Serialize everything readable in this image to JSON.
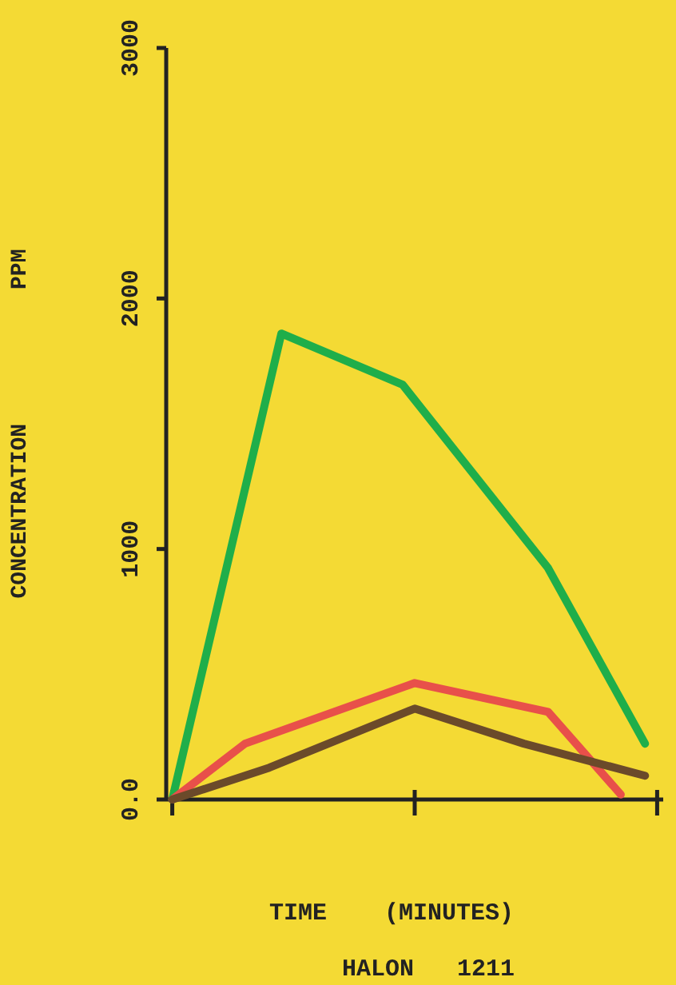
{
  "chart_data": {
    "type": "line",
    "xlabel": "TIME    (MINUTES)",
    "ylabel": "CONCENTRATION          PPM",
    "annotations": [
      "HALON   1211"
    ],
    "categories": [
      null,
      null,
      null,
      null,
      null,
      null,
      null,
      null,
      null,
      null,
      null,
      null,
      null,
      null,
      null,
      null,
      null,
      null,
      null,
      null,
      null,
      null,
      null,
      null,
      null,
      null,
      null,
      null,
      null,
      null,
      null,
      null,
      null,
      null,
      null,
      null,
      null,
      null,
      null,
      null,
      null
    ],
    "ylim": [
      0,
      3000
    ],
    "yticks": [
      {
        "value": 0,
        "label": "0.0"
      },
      1000,
      2000,
      3000
    ],
    "marker": "none",
    "line_style": "solid",
    "series": [
      {
        "color": "#1fae4a",
        "values": [
          0,
          null,
          null,
          null,
          null,
          null,
          null,
          null,
          null,
          1860,
          null,
          null,
          null,
          null,
          null,
          null,
          null,
          null,
          null,
          1656,
          null,
          null,
          null,
          null,
          null,
          null,
          null,
          null,
          null,
          null,
          null,
          924,
          null,
          null,
          null,
          null,
          null,
          null,
          null,
          223,
          null
        ]
      },
      {
        "color": "#e8504a",
        "values": [
          0,
          null,
          null,
          null,
          null,
          null,
          223,
          null,
          null,
          null,
          null,
          null,
          null,
          null,
          null,
          null,
          null,
          null,
          null,
          null,
          465,
          null,
          null,
          null,
          null,
          null,
          null,
          null,
          null,
          null,
          null,
          350,
          null,
          null,
          null,
          null,
          null,
          20,
          null,
          null,
          null
        ]
      },
      {
        "color": "#6b4a2a",
        "values": [
          0,
          null,
          null,
          null,
          null,
          null,
          null,
          null,
          127,
          null,
          null,
          null,
          null,
          null,
          null,
          null,
          null,
          null,
          null,
          null,
          363,
          null,
          null,
          null,
          null,
          null,
          null,
          null,
          null,
          223,
          null,
          null,
          null,
          null,
          null,
          null,
          null,
          null,
          null,
          95,
          null
        ]
      }
    ]
  }
}
